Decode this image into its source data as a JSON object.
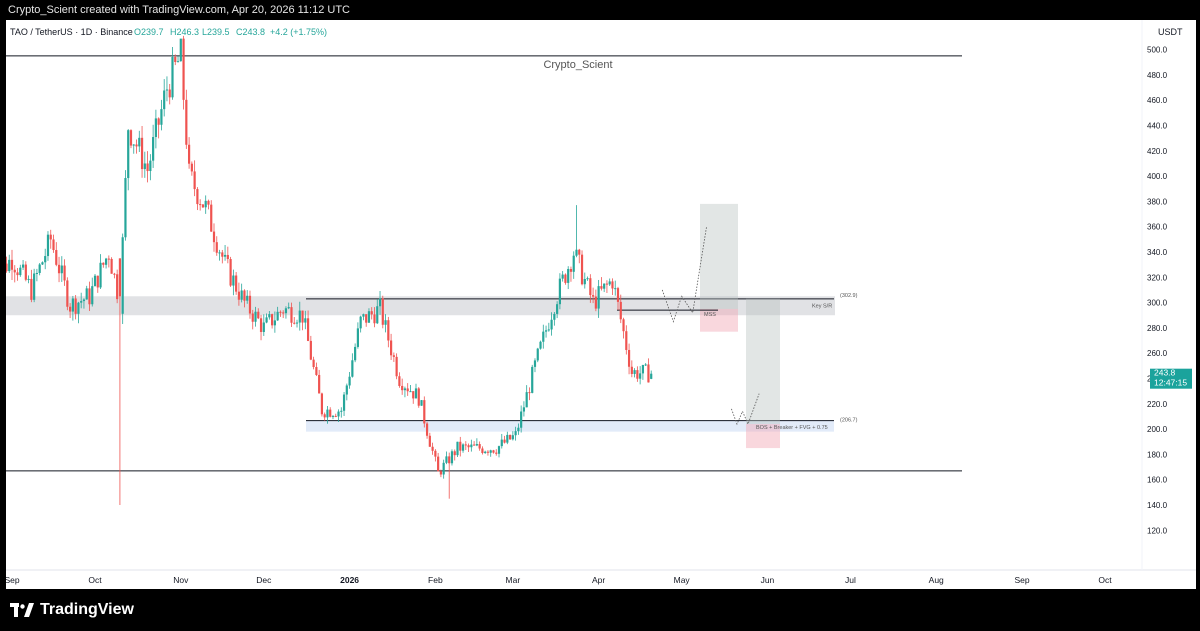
{
  "attribution": "Crypto_Scient created with TradingView.com, Apr 20, 2026 11:12 UTC",
  "legend": {
    "symbol": "TAO / TetherUS · 1D · Binance",
    "open": "O239.7",
    "high": "H246.3",
    "low": "L239.5",
    "close": "C243.8",
    "change": "+4.2 (+1.75%)"
  },
  "watermark": "Crypto_Scient",
  "currency": "USDT",
  "price_badge": {
    "price": "243.8",
    "countdown": "12:47:15"
  },
  "brand": "TradingView",
  "colors": {
    "up": "#26a69a",
    "down": "#ef5350",
    "badge": "#1ba39c",
    "zone": "#d1d4dc"
  },
  "chart_data": {
    "type": "candlestick",
    "y_axis": {
      "ticks": [
        120.0,
        140.0,
        160.0,
        180.0,
        200.0,
        220.0,
        240.0,
        260.0,
        280.0,
        300.0,
        320.0,
        340.0,
        360.0,
        380.0,
        400.0,
        420.0,
        440.0,
        460.0,
        480.0,
        500.0
      ],
      "range": [
        108,
        504
      ],
      "scale": "linear"
    },
    "x_axis": {
      "labels": [
        "Sep",
        "Oct",
        "Nov",
        "Dec",
        "2026",
        "Feb",
        "Mar",
        "Apr",
        "May",
        "Jun",
        "Jul",
        "Aug",
        "Sep",
        "Oct"
      ]
    },
    "annotations": {
      "levels": [
        {
          "label": "(302.9)",
          "price": 302.9
        },
        {
          "label": "(206.7)",
          "price": 206.7
        }
      ],
      "zone_labels": [
        "Key S/R",
        "MSS",
        "BOS + Breaker + FVG + 0.75"
      ],
      "horizontal_lines": [
        495,
        167
      ],
      "zones": [
        {
          "label": "Key S/R",
          "low": 290,
          "high": 305
        },
        {
          "label": "BOS + Breaker + FVG + 0.75",
          "low": 198,
          "high": 207
        }
      ]
    },
    "anchors": [
      [
        "2025-08-25",
        318
      ],
      [
        "2025-09-01",
        335
      ],
      [
        "2025-09-08",
        310
      ],
      [
        "2025-09-15",
        350
      ],
      [
        "2025-09-22",
        298
      ],
      [
        "2025-09-29",
        305
      ],
      [
        "2025-10-06",
        340
      ],
      [
        "2025-10-10",
        300
      ],
      [
        "2025-10-13",
        440
      ],
      [
        "2025-10-20",
        405
      ],
      [
        "2025-10-27",
        470
      ],
      [
        "2025-11-01",
        495
      ],
      [
        "2025-11-04",
        400
      ],
      [
        "2025-11-10",
        375
      ],
      [
        "2025-11-17",
        330
      ],
      [
        "2025-11-24",
        300
      ],
      [
        "2025-12-01",
        280
      ],
      [
        "2025-12-08",
        295
      ],
      [
        "2025-12-15",
        290
      ],
      [
        "2025-12-22",
        215
      ],
      [
        "2025-12-29",
        215
      ],
      [
        "2026-01-05",
        285
      ],
      [
        "2026-01-12",
        295
      ],
      [
        "2026-01-19",
        240
      ],
      [
        "2026-01-26",
        225
      ],
      [
        "2026-02-02",
        165
      ],
      [
        "2026-02-09",
        185
      ],
      [
        "2026-02-16",
        185
      ],
      [
        "2026-02-23",
        185
      ],
      [
        "2026-03-02",
        195
      ],
      [
        "2026-03-09",
        250
      ],
      [
        "2026-03-16",
        300
      ],
      [
        "2026-03-23",
        340
      ],
      [
        "2026-03-30",
        300
      ],
      [
        "2026-04-06",
        318
      ],
      [
        "2026-04-13",
        245
      ],
      [
        "2026-04-20",
        243.8
      ]
    ],
    "last": {
      "open": 239.7,
      "high": 246.3,
      "low": 239.5,
      "close": 243.8
    }
  }
}
